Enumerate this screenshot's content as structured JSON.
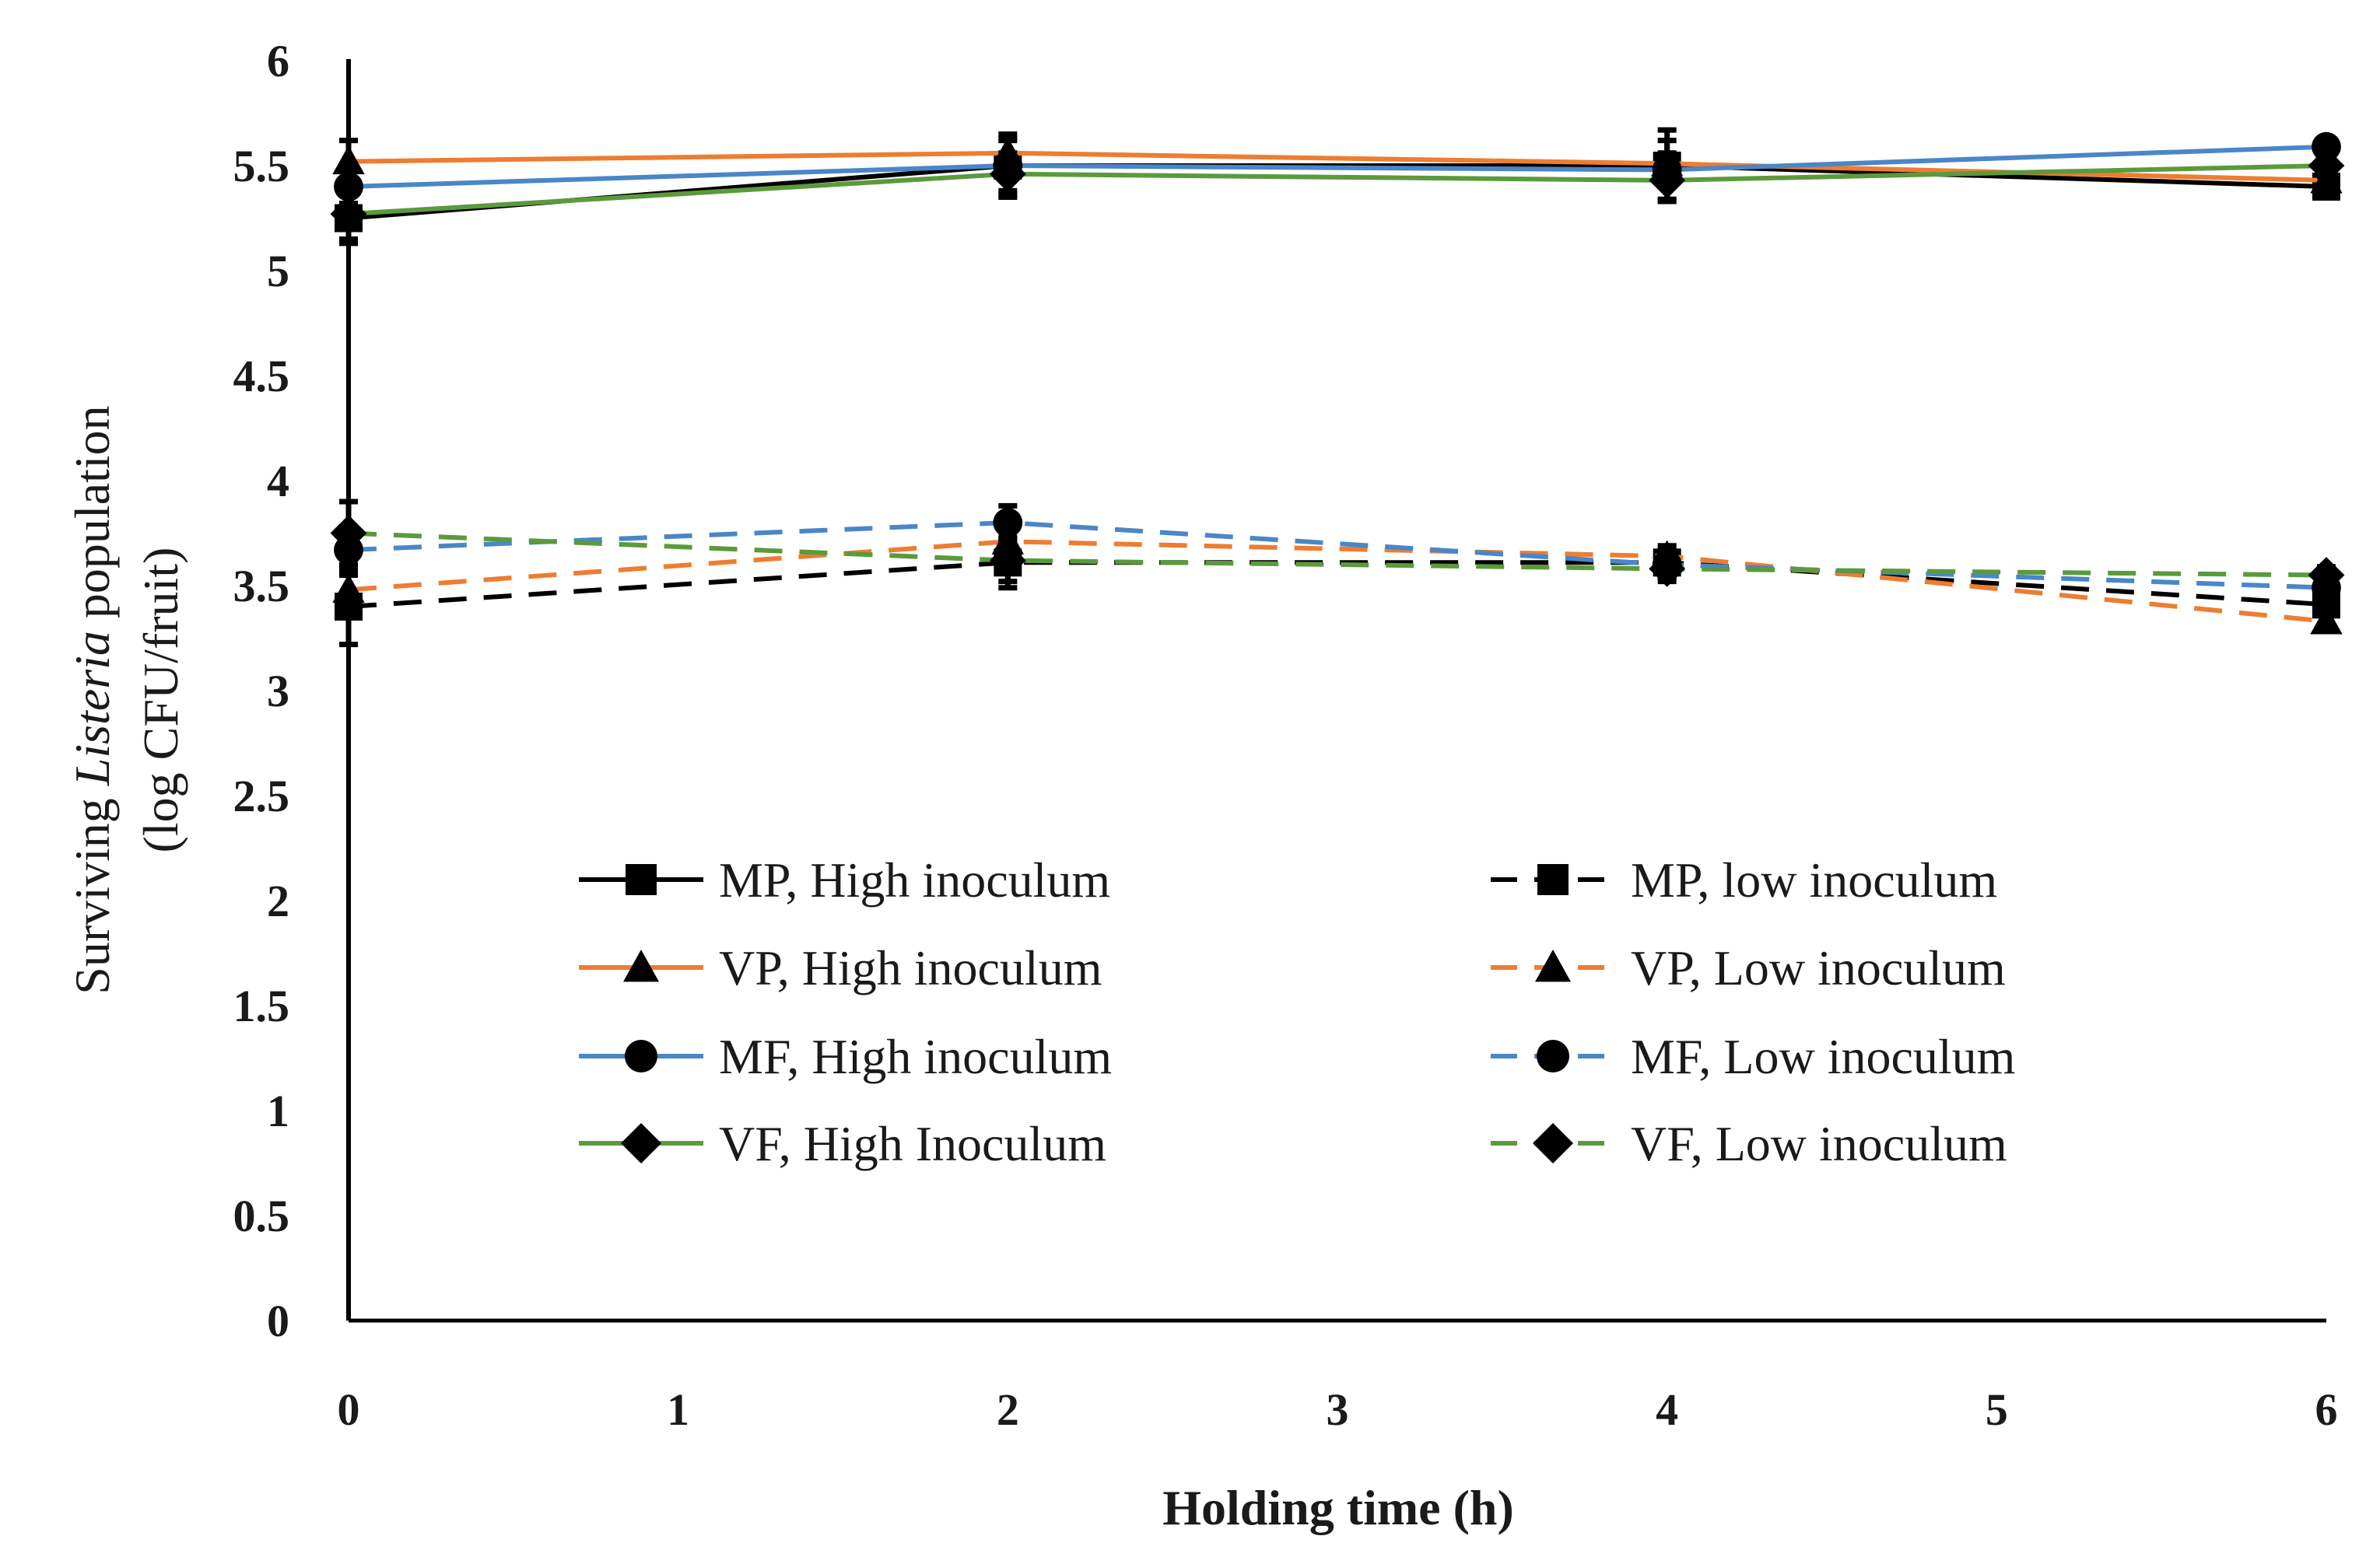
{
  "chart_data": {
    "type": "line",
    "title": "",
    "xlabel": "Holding time (h)",
    "ylabel_prefix": "Surviving ",
    "ylabel_italic": "Listeria",
    "ylabel_suffix": " population",
    "ylabel_line2": "(log CFU/fruit)",
    "xlim": [
      0,
      6
    ],
    "ylim": [
      0,
      6
    ],
    "x_ticks": [
      "0",
      "1",
      "2",
      "3",
      "4",
      "5",
      "6"
    ],
    "y_ticks": [
      "0",
      "0.5",
      "1",
      "1.5",
      "2",
      "2.5",
      "3",
      "3.5",
      "4",
      "4.5",
      "5",
      "5.5",
      "6"
    ],
    "x": [
      0,
      2,
      4,
      6
    ],
    "legend_position": "center",
    "series": [
      {
        "name": "MP, High inoculum",
        "color": "#000000",
        "dash": "solid",
        "marker": "square",
        "values": [
          5.25,
          5.5,
          5.5,
          5.4
        ],
        "errors": [
          0.12,
          0.12,
          0.17,
          0.05
        ]
      },
      {
        "name": "VP, High inoculum",
        "color": "#ed7d31",
        "dash": "solid",
        "marker": "triangle",
        "values": [
          5.52,
          5.56,
          5.51,
          5.43
        ],
        "errors": [
          0.1,
          0.07,
          0.05,
          0.05
        ]
      },
      {
        "name": "MF, High inoculum",
        "color": "#4a86c8",
        "dash": "solid",
        "marker": "circle",
        "values": [
          5.4,
          5.5,
          5.48,
          5.59
        ],
        "errors": [
          0.08,
          0.15,
          0.14,
          0.04
        ]
      },
      {
        "name": "VF, High Inoculum",
        "color": "#5b9a3c",
        "dash": "solid",
        "marker": "diamond",
        "values": [
          5.27,
          5.46,
          5.43,
          5.5
        ],
        "errors": [
          0.12,
          0.1,
          0.1,
          0.05
        ]
      },
      {
        "name": "MP, low inoculum",
        "color": "#000000",
        "dash": "dashed",
        "marker": "square",
        "values": [
          3.4,
          3.61,
          3.61,
          3.41
        ],
        "errors": [
          0.18,
          0.12,
          0.07,
          0.05
        ]
      },
      {
        "name": "VP, Low inoculum",
        "color": "#ed7d31",
        "dash": "dashed",
        "marker": "triangle",
        "values": [
          3.48,
          3.71,
          3.64,
          3.33
        ],
        "errors": [
          0.07,
          0.06,
          0.05,
          0.04
        ]
      },
      {
        "name": "MF, Low inoculum",
        "color": "#4a86c8",
        "dash": "dashed",
        "marker": "circle",
        "values": [
          3.67,
          3.8,
          3.6,
          3.49
        ],
        "errors": [
          0.1,
          0.08,
          0.06,
          0.05
        ]
      },
      {
        "name": "VF, Low inoculum",
        "color": "#5b9a3c",
        "dash": "dashed",
        "marker": "diamond",
        "values": [
          3.75,
          3.62,
          3.58,
          3.55
        ],
        "errors": [
          0.15,
          0.1,
          0.06,
          0.04
        ]
      }
    ]
  }
}
